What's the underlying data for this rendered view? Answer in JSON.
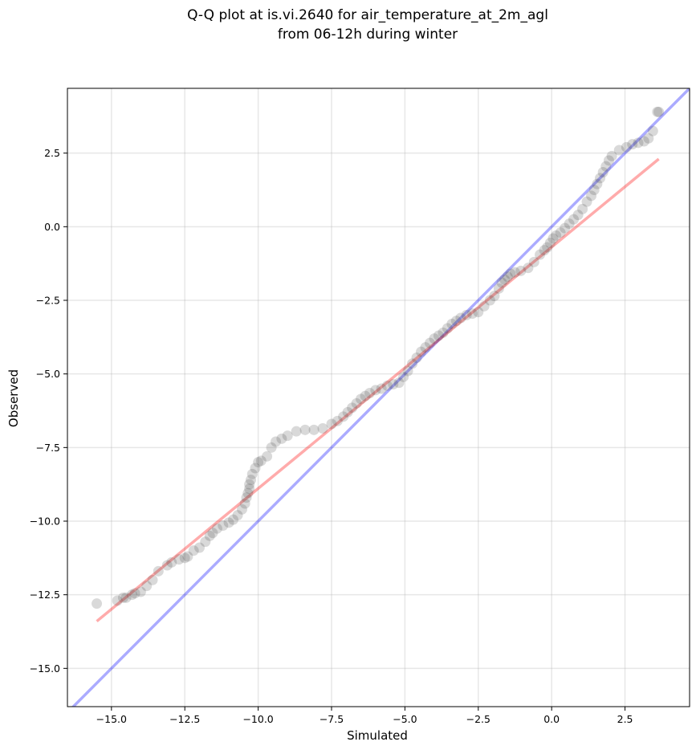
{
  "chart_data": {
    "type": "scatter",
    "title_lines": [
      "Q-Q plot at is.vi.2640 for air_temperature_at_2m_agl",
      "from 06-12h during winter"
    ],
    "xlabel": "Simulated",
    "ylabel": "Observed",
    "xlim": [
      -16.5,
      4.7
    ],
    "ylim": [
      -16.3,
      4.7
    ],
    "x_ticks": [
      -15.0,
      -12.5,
      -10.0,
      -7.5,
      -5.0,
      -2.5,
      0.0,
      2.5
    ],
    "x_tick_labels": [
      "−15.0",
      "−12.5",
      "−10.0",
      "−7.5",
      "−5.0",
      "−2.5",
      "0.0",
      "2.5"
    ],
    "y_ticks": [
      2.5,
      0.0,
      -2.5,
      -5.0,
      -7.5,
      -10.0,
      -12.5,
      -15.0
    ],
    "y_tick_labels": [
      "2.5",
      "0.0",
      "−2.5",
      "−5.0",
      "−7.5",
      "−10.0",
      "−12.5",
      "−15.0"
    ],
    "grid": true,
    "reference_line": {
      "slope": 1,
      "intercept": 0,
      "color": "#0000ff"
    },
    "fit_line": {
      "x": [
        -15.5,
        3.65
      ],
      "y": [
        -13.4,
        2.3
      ],
      "color": "#ff0000"
    },
    "point_color": "#404040",
    "quantiles": {
      "x": [
        -15.5,
        -14.8,
        -14.6,
        -14.5,
        -14.3,
        -14.2,
        -14.0,
        -13.8,
        -13.6,
        -13.4,
        -13.1,
        -12.95,
        -12.7,
        -12.5,
        -12.4,
        -12.2,
        -12.0,
        -11.8,
        -11.65,
        -11.55,
        -11.4,
        -11.2,
        -11.0,
        -10.85,
        -10.7,
        -10.55,
        -10.45,
        -10.4,
        -10.35,
        -10.3,
        -10.3,
        -10.25,
        -10.2,
        -10.1,
        -10.0,
        -9.9,
        -9.7,
        -9.55,
        -9.4,
        -9.2,
        -9.0,
        -8.7,
        -8.4,
        -8.1,
        -7.8,
        -7.5,
        -7.3,
        -7.1,
        -6.95,
        -6.8,
        -6.65,
        -6.5,
        -6.35,
        -6.2,
        -6.0,
        -5.8,
        -5.6,
        -5.4,
        -5.2,
        -5.05,
        -4.9,
        -4.75,
        -4.6,
        -4.45,
        -4.3,
        -4.15,
        -4.0,
        -3.85,
        -3.7,
        -3.55,
        -3.4,
        -3.25,
        -3.1,
        -2.9,
        -2.7,
        -2.5,
        -2.3,
        -2.1,
        -1.95,
        -1.8,
        -1.7,
        -1.6,
        -1.5,
        -1.4,
        -1.25,
        -1.05,
        -0.8,
        -0.6,
        -0.4,
        -0.25,
        -0.15,
        -0.05,
        0.05,
        0.15,
        0.3,
        0.45,
        0.6,
        0.75,
        0.9,
        1.05,
        1.2,
        1.35,
        1.45,
        1.55,
        1.65,
        1.75,
        1.85,
        1.95,
        2.05,
        2.3,
        2.55,
        2.75,
        2.95,
        3.15,
        3.3,
        3.45,
        3.6,
        3.65
      ],
      "y": [
        -12.8,
        -12.7,
        -12.6,
        -12.6,
        -12.5,
        -12.45,
        -12.4,
        -12.2,
        -12.0,
        -11.7,
        -11.5,
        -11.4,
        -11.3,
        -11.25,
        -11.2,
        -11.0,
        -10.9,
        -10.7,
        -10.5,
        -10.4,
        -10.25,
        -10.15,
        -10.05,
        -9.95,
        -9.8,
        -9.6,
        -9.4,
        -9.2,
        -9.05,
        -8.9,
        -8.75,
        -8.6,
        -8.4,
        -8.2,
        -8.0,
        -7.95,
        -7.8,
        -7.5,
        -7.3,
        -7.2,
        -7.1,
        -6.95,
        -6.9,
        -6.9,
        -6.85,
        -6.7,
        -6.6,
        -6.45,
        -6.3,
        -6.15,
        -6.0,
        -5.85,
        -5.75,
        -5.65,
        -5.55,
        -5.5,
        -5.4,
        -5.35,
        -5.3,
        -5.1,
        -4.9,
        -4.65,
        -4.45,
        -4.25,
        -4.1,
        -3.95,
        -3.8,
        -3.7,
        -3.6,
        -3.45,
        -3.3,
        -3.2,
        -3.1,
        -3.0,
        -2.95,
        -2.9,
        -2.7,
        -2.5,
        -2.35,
        -2.1,
        -1.9,
        -1.8,
        -1.7,
        -1.6,
        -1.55,
        -1.5,
        -1.4,
        -1.2,
        -0.95,
        -0.8,
        -0.7,
        -0.55,
        -0.4,
        -0.3,
        -0.2,
        -0.05,
        0.1,
        0.25,
        0.4,
        0.6,
        0.85,
        1.05,
        1.25,
        1.45,
        1.65,
        1.85,
        2.05,
        2.25,
        2.4,
        2.6,
        2.7,
        2.8,
        2.85,
        2.9,
        3.0,
        3.25,
        3.9,
        3.9
      ]
    }
  }
}
